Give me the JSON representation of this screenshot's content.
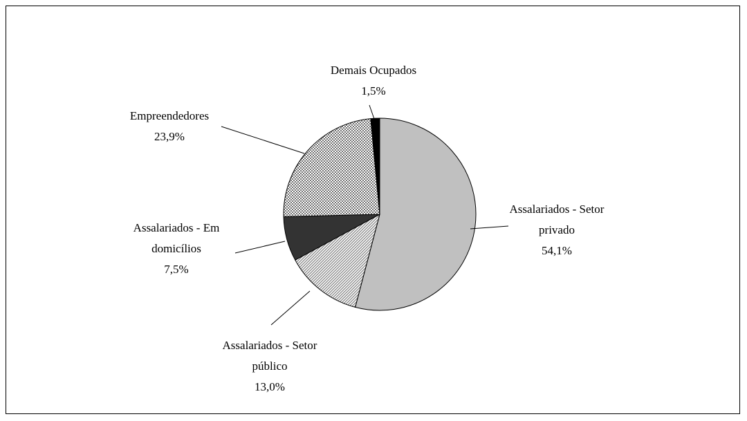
{
  "chart_data": {
    "type": "pie",
    "categories": [
      "Assalariados - Setor privado",
      "Assalariados - Setor público",
      "Assalariados - Em domicílios",
      "Empreendedores",
      "Demais Ocupados"
    ],
    "values": [
      54.1,
      13.0,
      7.5,
      23.9,
      1.5
    ],
    "value_labels": [
      "54,1%",
      "13,0%",
      "7,5%",
      "23,9%",
      "1,5%"
    ],
    "colors": [
      "#c0c0c0",
      "#808080",
      "#333333",
      "#707070",
      "#000000"
    ],
    "patterns": [
      null,
      "diagonal",
      null,
      "crosshatch",
      null
    ]
  }
}
